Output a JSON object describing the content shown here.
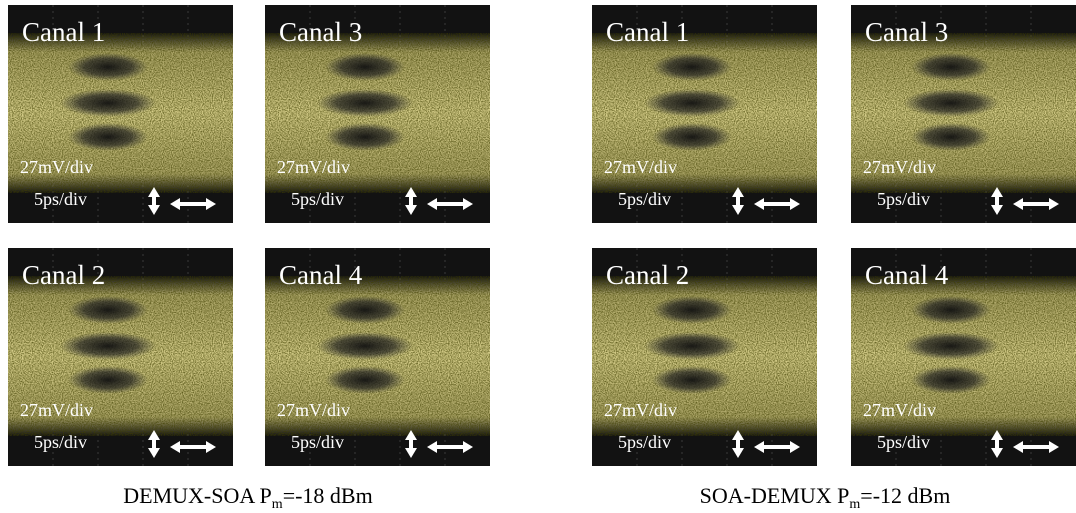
{
  "groups": [
    {
      "panels": [
        {
          "title": "Canal 1",
          "vertical_scale": "27mV/div",
          "horizontal_scale": "5ps/div"
        },
        {
          "title": "Canal 3",
          "vertical_scale": "27mV/div",
          "horizontal_scale": "5ps/div"
        },
        {
          "title": "Canal 2",
          "vertical_scale": "27mV/div",
          "horizontal_scale": "5ps/div"
        },
        {
          "title": "Canal 4",
          "vertical_scale": "27mV/div",
          "horizontal_scale": "5ps/div"
        }
      ],
      "caption": {
        "prefix": "DEMUX-SOA P",
        "subscript": "m",
        "suffix": "=-18 dBm"
      }
    },
    {
      "panels": [
        {
          "title": "Canal 1",
          "vertical_scale": "27mV/div",
          "horizontal_scale": "5ps/div"
        },
        {
          "title": "Canal 3",
          "vertical_scale": "27mV/div",
          "horizontal_scale": "5ps/div"
        },
        {
          "title": "Canal 2",
          "vertical_scale": "27mV/div",
          "horizontal_scale": "5ps/div"
        },
        {
          "title": "Canal 4",
          "vertical_scale": "27mV/div",
          "horizontal_scale": "5ps/div"
        }
      ],
      "caption": {
        "prefix": "SOA-DEMUX P",
        "subscript": "m",
        "suffix": "=-12 dBm"
      }
    }
  ]
}
